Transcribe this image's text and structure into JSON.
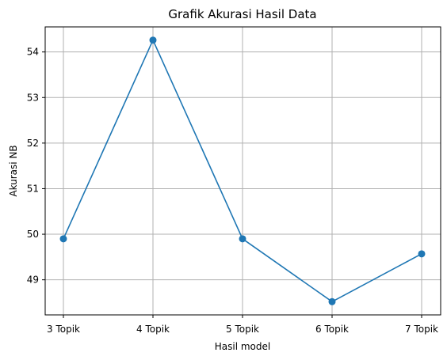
{
  "chart_data": {
    "type": "line",
    "title": "Grafik Akurasi Hasil Data",
    "xlabel": "Hasil model",
    "ylabel": "Akurasi NB",
    "categories": [
      "3 Topik",
      "4 Topik",
      "5 Topik",
      "6 Topik",
      "7 Topik"
    ],
    "series": [
      {
        "values": [
          49.9,
          54.26,
          49.9,
          48.52,
          49.57
        ],
        "color": "#1f77b4",
        "marker": "circle"
      }
    ],
    "ylim": [
      48.23,
      54.55
    ],
    "yticks": [
      49,
      50,
      51,
      52,
      53,
      54
    ],
    "grid": true,
    "legend": "none"
  },
  "colors": {
    "line": "#1f77b4",
    "grid": "#b0b0b0",
    "axis": "#000000"
  }
}
